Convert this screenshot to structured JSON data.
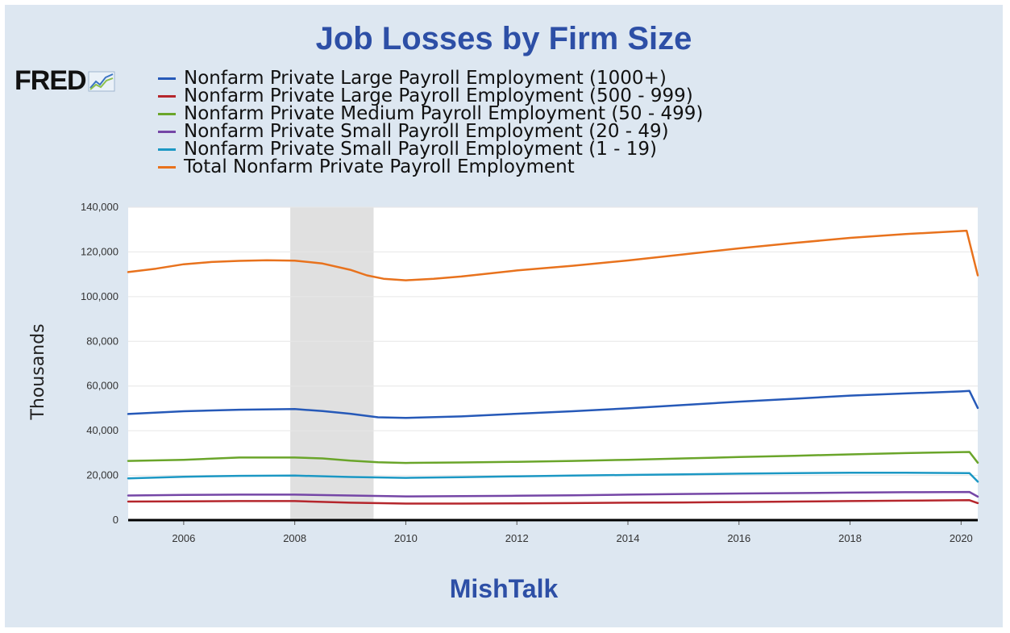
{
  "title": "Job Losses by Firm Size",
  "logo": {
    "text": "FRED",
    "icon": "fred-chart-icon"
  },
  "footer": "MishTalk",
  "chart_data": {
    "type": "line",
    "ylabel": "Thousands",
    "ylim": [
      0,
      140000
    ],
    "xlim": [
      2005.0,
      2020.3
    ],
    "yticks": [
      0,
      20000,
      40000,
      60000,
      80000,
      100000,
      120000,
      140000
    ],
    "ytick_labels": [
      "0",
      "20,000",
      "40,000",
      "60,000",
      "80,000",
      "100,000",
      "120,000",
      "140,000"
    ],
    "xticks": [
      2006,
      2008,
      2010,
      2012,
      2014,
      2016,
      2018,
      2020
    ],
    "xtick_labels": [
      "2006",
      "2008",
      "2010",
      "2012",
      "2014",
      "2016",
      "2018",
      "2020"
    ],
    "recession": [
      2007.92,
      2009.42
    ],
    "recession_color": "#e0e0e0",
    "grid": true,
    "legend_position": "top",
    "series": [
      {
        "name": "Nonfarm Private Large Payroll Employment (1000+)",
        "color": "#2659b8",
        "x": [
          2005.0,
          2006.0,
          2007.0,
          2008.0,
          2008.5,
          2009.0,
          2009.5,
          2010.0,
          2011.0,
          2012.0,
          2013.0,
          2014.0,
          2015.0,
          2016.0,
          2017.0,
          2018.0,
          2019.0,
          2020.0,
          2020.15,
          2020.3
        ],
        "y": [
          47500,
          48700,
          49400,
          49700,
          48800,
          47600,
          46000,
          45700,
          46400,
          47600,
          48700,
          50000,
          51500,
          53000,
          54300,
          55700,
          56700,
          57600,
          57800,
          50200
        ]
      },
      {
        "name": "Nonfarm Private Large Payroll Employment (500 - 999)",
        "color": "#b5262c",
        "x": [
          2005.0,
          2006.0,
          2007.0,
          2008.0,
          2009.0,
          2010.0,
          2011.0,
          2012.0,
          2013.0,
          2014.0,
          2015.0,
          2016.0,
          2017.0,
          2018.0,
          2019.0,
          2020.15,
          2020.3
        ],
        "y": [
          8300,
          8400,
          8500,
          8500,
          7800,
          7400,
          7400,
          7500,
          7600,
          7800,
          7900,
          8100,
          8300,
          8500,
          8700,
          8900,
          7600
        ]
      },
      {
        "name": "Nonfarm Private Medium Payroll Employment (50 - 499)",
        "color": "#6aa52a",
        "x": [
          2005.0,
          2006.0,
          2007.0,
          2008.0,
          2008.5,
          2009.0,
          2009.5,
          2010.0,
          2011.0,
          2012.0,
          2013.0,
          2014.0,
          2015.0,
          2016.0,
          2017.0,
          2018.0,
          2019.0,
          2020.15,
          2020.3
        ],
        "y": [
          26500,
          27000,
          28000,
          28000,
          27600,
          26600,
          25900,
          25600,
          25800,
          26100,
          26500,
          27000,
          27600,
          28200,
          28800,
          29400,
          30000,
          30500,
          25700
        ]
      },
      {
        "name": "Nonfarm Private Small Payroll Employment (20 - 49)",
        "color": "#7546a6",
        "x": [
          2005.0,
          2006.0,
          2007.0,
          2008.0,
          2009.0,
          2010.0,
          2011.0,
          2012.0,
          2013.0,
          2014.0,
          2015.0,
          2016.0,
          2017.0,
          2018.0,
          2019.0,
          2020.15,
          2020.3
        ],
        "y": [
          11000,
          11300,
          11400,
          11400,
          11000,
          10600,
          10700,
          10900,
          11100,
          11400,
          11700,
          11900,
          12100,
          12300,
          12500,
          12600,
          10500
        ]
      },
      {
        "name": "Nonfarm Private Small Payroll Employment (1 - 19)",
        "color": "#1c98c4",
        "x": [
          2005.0,
          2006.0,
          2007.0,
          2008.0,
          2009.0,
          2010.0,
          2011.0,
          2012.0,
          2013.0,
          2014.0,
          2015.0,
          2016.0,
          2017.0,
          2018.0,
          2019.0,
          2020.15,
          2020.3
        ],
        "y": [
          18700,
          19400,
          19800,
          19900,
          19300,
          18900,
          19200,
          19600,
          19900,
          20200,
          20500,
          20800,
          21000,
          21200,
          21200,
          21000,
          17200
        ]
      },
      {
        "name": "Total Nonfarm Private Payroll Employment",
        "color": "#e8721d",
        "x": [
          2005.0,
          2005.5,
          2006.0,
          2006.5,
          2007.0,
          2007.5,
          2008.0,
          2008.5,
          2009.0,
          2009.3,
          2009.6,
          2010.0,
          2010.5,
          2011.0,
          2012.0,
          2013.0,
          2014.0,
          2015.0,
          2016.0,
          2017.0,
          2018.0,
          2019.0,
          2020.1,
          2020.3
        ],
        "y": [
          111000,
          112500,
          114500,
          115500,
          116000,
          116300,
          116100,
          114800,
          112000,
          109500,
          108000,
          107300,
          108000,
          109000,
          111700,
          113800,
          116200,
          118900,
          121600,
          124000,
          126300,
          128000,
          129500,
          109500
        ]
      }
    ]
  }
}
